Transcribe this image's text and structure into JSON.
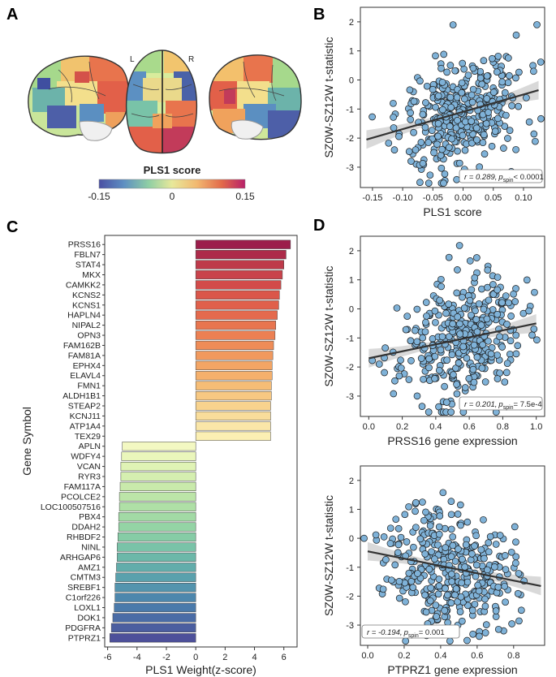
{
  "figure": {
    "panel_labels": [
      "A",
      "B",
      "C",
      "D"
    ],
    "brain_map": {
      "hemisphere_left": "L",
      "hemisphere_right": "R",
      "colorbar_title": "PLS1 score",
      "colorbar_ticks": [
        "-0.15",
        "0",
        "0.15"
      ],
      "colorbar_colors": [
        "#4a4fa3",
        "#5e8fc2",
        "#8fcfa4",
        "#e8e89a",
        "#f2b870",
        "#e26a4a",
        "#b8206a"
      ]
    }
  },
  "chart_data": [
    {
      "id": "B",
      "type": "scatter",
      "xlabel": "PLS1 score",
      "ylabel": "SZ0W-SZ12W t-statistic",
      "xlim": [
        -0.17,
        0.135
      ],
      "ylim": [
        -3.7,
        2.5
      ],
      "xticks": [
        -0.15,
        -0.1,
        -0.05,
        0.0,
        0.05,
        0.1
      ],
      "xtick_labels": [
        "-0.15",
        "-0.10",
        "-0.05",
        "0.00",
        "0.05",
        "0.10"
      ],
      "yticks": [
        -3,
        -2,
        -1,
        0,
        1,
        2
      ],
      "ytick_labels": [
        "-3",
        "-2",
        "-1",
        "0",
        "1",
        "2"
      ],
      "fit": {
        "x": [
          -0.16,
          0.125
        ],
        "y": [
          -2.05,
          -0.35
        ]
      },
      "annotation": {
        "prefix": "r = 0.289,",
        "p": "p",
        "sub": "spin",
        "suffix": "< 0.0001"
      },
      "n_points": 370,
      "x_mean": 0.0,
      "x_sd": 0.05,
      "slope": 5.9,
      "intercept": -1.1,
      "noise_sd": 1.0,
      "seed": 11
    },
    {
      "id": "C",
      "type": "bar",
      "orientation": "horizontal",
      "xlabel": "PLS1 Weight(z-score)",
      "ylabel": "Gene Symbol",
      "xlim": [
        -6.2,
        6.9
      ],
      "xticks": [
        -6,
        -4,
        -2,
        0,
        2,
        4,
        6
      ],
      "xtick_labels": [
        "-6",
        "-4",
        "-2",
        "0",
        "2",
        "4",
        "6"
      ],
      "categories": [
        "PRSS16",
        "FBLN7",
        "STAT4",
        "MKX",
        "CAMKK2",
        "KCNS2",
        "KCNS1",
        "HAPLN4",
        "NIPAL2",
        "OPN3",
        "FAM162B",
        "FAM81A",
        "EPHX4",
        "ELAVL4",
        "FMN1",
        "ALDH1B1",
        "STEAP2",
        "KCNJ11",
        "ATP1A4",
        "TEX29",
        "APLN",
        "WDFY4",
        "VCAN",
        "RYR3",
        "FAM117A",
        "PCOLCE2",
        "LOC100507516",
        "PBX4",
        "DDAH2",
        "RHBDF2",
        "NINL",
        "ARHGAP6",
        "AMZ1",
        "CMTM3",
        "SREBF1",
        "C1orf226",
        "LOXL1",
        "DOK1",
        "PDGFRA",
        "PTPRZ1"
      ],
      "values": [
        6.45,
        6.15,
        6.0,
        5.9,
        5.8,
        5.7,
        5.65,
        5.55,
        5.45,
        5.4,
        5.3,
        5.25,
        5.2,
        5.2,
        5.15,
        5.15,
        5.1,
        5.1,
        5.1,
        5.1,
        -5.0,
        -5.05,
        -5.1,
        -5.1,
        -5.15,
        -5.2,
        -5.2,
        -5.25,
        -5.25,
        -5.3,
        -5.35,
        -5.35,
        -5.4,
        -5.45,
        -5.5,
        -5.5,
        -5.55,
        -5.65,
        -5.75,
        -5.85
      ],
      "colors": [
        "#9c1d4b",
        "#ad2b4a",
        "#be3a4a",
        "#c9434b",
        "#d24b4a",
        "#da564a",
        "#e0604b",
        "#e46a4d",
        "#e8754f",
        "#ec8053",
        "#ef8c57",
        "#f1995e",
        "#f3a565",
        "#f5b06c",
        "#f6bd76",
        "#f7c882",
        "#f8d38e",
        "#f9dd9b",
        "#fae6a8",
        "#fbefb3",
        "#f3f8c2",
        "#eaf6bb",
        "#e0f3b5",
        "#d5efb0",
        "#c9eaab",
        "#bce5a8",
        "#afe0a6",
        "#a2daa5",
        "#94d4a5",
        "#86cca6",
        "#79c3a8",
        "#6cb8a9",
        "#62adab",
        "#5aa1ad",
        "#5394ae",
        "#4d87ad",
        "#4a7aab",
        "#4a6ca6",
        "#4b5ea0",
        "#4d509a"
      ]
    },
    {
      "id": "D1",
      "type": "scatter",
      "xlabel": "PRSS16 gene expression",
      "ylabel": "SZ0W-SZ12W t-statistic",
      "xlim": [
        -0.05,
        1.05
      ],
      "ylim": [
        -3.7,
        2.5
      ],
      "xticks": [
        0.0,
        0.2,
        0.4,
        0.6,
        0.8,
        1.0
      ],
      "xtick_labels": [
        "0.0",
        "0.2",
        "0.4",
        "0.6",
        "0.8",
        "1.0"
      ],
      "yticks": [
        -3,
        -2,
        -1,
        0,
        1,
        2
      ],
      "ytick_labels": [
        "-3",
        "-2",
        "-1",
        "0",
        "1",
        "2"
      ],
      "fit": {
        "x": [
          0.0,
          1.0
        ],
        "y": [
          -1.7,
          -0.5
        ]
      },
      "annotation": {
        "prefix": "r = 0.201,",
        "p": "p",
        "sub": "spin",
        "suffix": "= 7.5e-4"
      },
      "n_points": 370,
      "x_mean": 0.55,
      "x_sd": 0.18,
      "slope": 1.2,
      "intercept": -1.7,
      "noise_sd": 1.05,
      "seed": 23
    },
    {
      "id": "D2",
      "type": "scatter",
      "xlabel": "PTPRZ1 gene expression",
      "ylabel": "SZ0W-SZ12W t-statistic",
      "xlim": [
        -0.04,
        0.97
      ],
      "ylim": [
        -3.7,
        2.5
      ],
      "xticks": [
        0.0,
        0.2,
        0.4,
        0.6,
        0.8
      ],
      "xtick_labels": [
        "0.0",
        "0.2",
        "0.4",
        "0.6",
        "0.8"
      ],
      "yticks": [
        -3,
        -2,
        -1,
        0,
        1,
        2
      ],
      "ytick_labels": [
        "-3",
        "-2",
        "-1",
        "0",
        "1",
        "2"
      ],
      "fit": {
        "x": [
          0.0,
          0.95
        ],
        "y": [
          -0.45,
          -1.65
        ]
      },
      "annotation": {
        "prefix": "r = -0.194,",
        "p": "p",
        "sub": "spin",
        "suffix": "= 0.001"
      },
      "n_points": 370,
      "x_mean": 0.45,
      "x_sd": 0.17,
      "slope": -1.26,
      "intercept": -0.45,
      "noise_sd": 1.05,
      "seed": 37
    }
  ]
}
